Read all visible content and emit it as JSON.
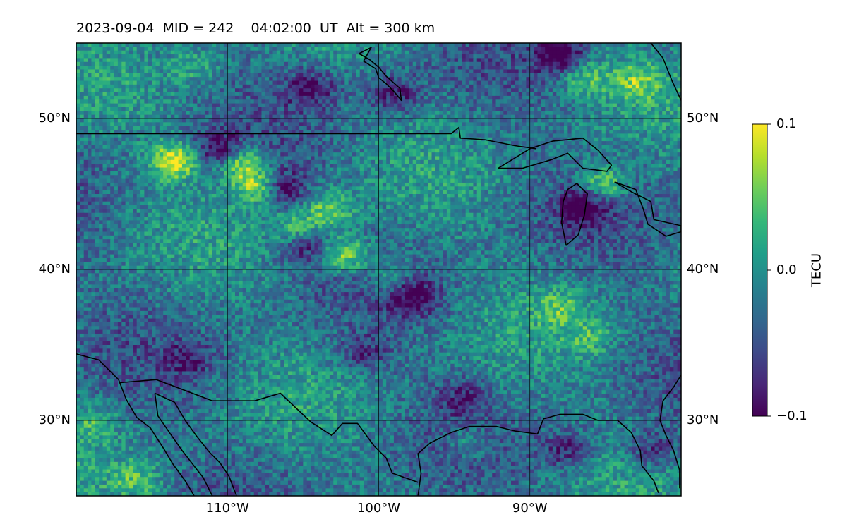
{
  "title": "2023-09-04  MID = 242    04:02:00  UT  Alt = 300 km",
  "map": {
    "lon_range": [
      -120,
      -80
    ],
    "lat_range": [
      25,
      55
    ],
    "grid": true,
    "lon_ticks": [
      {
        "value": -110,
        "label": "110°W"
      },
      {
        "value": -100,
        "label": "100°W"
      },
      {
        "value": -90,
        "label": "90°W"
      }
    ],
    "lat_ticks": [
      {
        "value": 50,
        "label": "50°N"
      },
      {
        "value": 40,
        "label": "40°N"
      },
      {
        "value": 30,
        "label": "30°N"
      }
    ]
  },
  "colorbar": {
    "label": "TECU",
    "colormap": "viridis",
    "vmin": -0.1,
    "vmax": 0.1,
    "ticks": [
      {
        "value": 0.1,
        "label": "0.1"
      },
      {
        "value": 0.0,
        "label": "0.0"
      },
      {
        "value": -0.1,
        "label": "−0.1"
      }
    ]
  },
  "field": {
    "grid_cols": 160,
    "grid_rows": 120,
    "background_value": -0.02,
    "anomalies": [
      {
        "lon": -113.5,
        "lat": 47.2,
        "value": 0.12
      },
      {
        "lon": -109.2,
        "lat": 47.1,
        "value": 0.11
      },
      {
        "lon": -107.8,
        "lat": 45.5,
        "value": 0.11
      },
      {
        "lon": -106.5,
        "lat": 45.4,
        "value": -0.1
      },
      {
        "lon": -110.5,
        "lat": 47.8,
        "value": -0.09
      },
      {
        "lon": -103.2,
        "lat": 44.0,
        "value": 0.07
      },
      {
        "lon": -105.2,
        "lat": 42.6,
        "value": 0.08
      },
      {
        "lon": -102.2,
        "lat": 41.0,
        "value": 0.1
      },
      {
        "lon": -104.8,
        "lat": 41.8,
        "value": -0.08
      },
      {
        "lon": -99.2,
        "lat": 39.5,
        "value": 0.05
      },
      {
        "lon": -97.6,
        "lat": 38.2,
        "value": -0.08
      },
      {
        "lon": -86.5,
        "lat": 44.2,
        "value": -0.09
      },
      {
        "lon": -85.2,
        "lat": 45.6,
        "value": 0.09
      },
      {
        "lon": -86.5,
        "lat": 52.8,
        "value": 0.06
      },
      {
        "lon": -83.0,
        "lat": 52.5,
        "value": 0.06
      },
      {
        "lon": -88.0,
        "lat": 54.2,
        "value": -0.1
      },
      {
        "lon": -99.0,
        "lat": 51.6,
        "value": -0.07
      },
      {
        "lon": -104.5,
        "lat": 52.0,
        "value": -0.07
      },
      {
        "lon": -112.0,
        "lat": 53.5,
        "value": 0.04
      },
      {
        "lon": -116.0,
        "lat": 26.0,
        "value": 0.05
      },
      {
        "lon": -119.0,
        "lat": 30.0,
        "value": 0.04
      },
      {
        "lon": -88.0,
        "lat": 37.5,
        "value": 0.05
      },
      {
        "lon": -86.0,
        "lat": 35.5,
        "value": 0.04
      },
      {
        "lon": -94.0,
        "lat": 28.5,
        "value": 0.04
      },
      {
        "lon": -82.0,
        "lat": 28.0,
        "value": -0.06
      },
      {
        "lon": -87.5,
        "lat": 28.0,
        "value": -0.06
      },
      {
        "lon": -112.5,
        "lat": 34.0,
        "value": -0.05
      },
      {
        "lon": -101.0,
        "lat": 34.5,
        "value": -0.05
      },
      {
        "lon": -94.5,
        "lat": 31.5,
        "value": -0.05
      }
    ]
  },
  "coastlines": [
    {
      "name": "canada-us-border",
      "points": [
        [
          -120,
          49
        ],
        [
          -95.2,
          49
        ],
        [
          -94.7,
          49.4
        ],
        [
          -94.6,
          48.7
        ],
        [
          -93,
          48.6
        ],
        [
          -91,
          48.2
        ],
        [
          -89.6,
          48
        ]
      ]
    },
    {
      "name": "hudson-bay-shore",
      "points": [
        [
          -101.3,
          54.3
        ],
        [
          -100.5,
          54.7
        ],
        [
          -101.0,
          53.8
        ],
        [
          -100.2,
          53.3
        ],
        [
          -100.0,
          52.7
        ],
        [
          -99.5,
          52.3
        ],
        [
          -99.0,
          51.8
        ],
        [
          -98.5,
          51.2
        ],
        [
          -98.6,
          52.0
        ],
        [
          -99.5,
          52.8
        ],
        [
          -100.0,
          53.4
        ],
        [
          -100.6,
          53.9
        ],
        [
          -101.3,
          54.3
        ]
      ]
    },
    {
      "name": "great-lakes-superior",
      "points": [
        [
          -92.1,
          46.7
        ],
        [
          -90.5,
          46.7
        ],
        [
          -88.5,
          47.3
        ],
        [
          -87.5,
          47.7
        ],
        [
          -86.5,
          46.7
        ],
        [
          -84.9,
          46.5
        ],
        [
          -84.6,
          46.9
        ],
        [
          -85.5,
          47.9
        ],
        [
          -86.5,
          48.7
        ],
        [
          -88.5,
          48.5
        ],
        [
          -90,
          48.0
        ],
        [
          -92.1,
          46.7
        ]
      ]
    },
    {
      "name": "great-lakes-michigan",
      "points": [
        [
          -87.9,
          43.1
        ],
        [
          -87.8,
          44.5
        ],
        [
          -87.5,
          45.3
        ],
        [
          -86.9,
          45.7
        ],
        [
          -86.2,
          45.0
        ],
        [
          -86.4,
          43.6
        ],
        [
          -86.8,
          42.3
        ],
        [
          -87.6,
          41.6
        ],
        [
          -87.9,
          43.1
        ]
      ]
    },
    {
      "name": "great-lakes-huron-erie",
      "points": [
        [
          -84.4,
          45.8
        ],
        [
          -83.0,
          45.3
        ],
        [
          -82.5,
          44.0
        ],
        [
          -82.2,
          43.0
        ],
        [
          -81.0,
          42.2
        ],
        [
          -80,
          42.5
        ],
        [
          -80,
          42.9
        ],
        [
          -81.8,
          43.3
        ],
        [
          -82.0,
          44.5
        ],
        [
          -83.2,
          45.1
        ],
        [
          -84.4,
          45.8
        ]
      ]
    },
    {
      "name": "mexico-us-border",
      "points": [
        [
          -117.1,
          32.5
        ],
        [
          -114.7,
          32.7
        ],
        [
          -111,
          31.3
        ],
        [
          -108.2,
          31.3
        ],
        [
          -106.5,
          31.8
        ],
        [
          -104.5,
          29.9
        ],
        [
          -103.1,
          29.0
        ],
        [
          -102.4,
          29.8
        ],
        [
          -101.4,
          29.8
        ],
        [
          -100.3,
          28.3
        ],
        [
          -99.5,
          27.5
        ],
        [
          -99.1,
          26.5
        ],
        [
          -97.4,
          25.9
        ]
      ]
    },
    {
      "name": "gulf-coast",
      "points": [
        [
          -97.4,
          25.0
        ],
        [
          -97.2,
          26.5
        ],
        [
          -97.4,
          27.8
        ],
        [
          -96.6,
          28.5
        ],
        [
          -95.2,
          29.2
        ],
        [
          -94.0,
          29.6
        ],
        [
          -92.2,
          29.6
        ],
        [
          -91.0,
          29.3
        ],
        [
          -89.5,
          29.1
        ],
        [
          -89.1,
          30.1
        ],
        [
          -88.0,
          30.4
        ],
        [
          -86.5,
          30.4
        ],
        [
          -85.5,
          30.0
        ],
        [
          -84.2,
          30.0
        ],
        [
          -83.3,
          29.2
        ],
        [
          -82.7,
          28.0
        ],
        [
          -82.6,
          27.0
        ],
        [
          -81.8,
          26.0
        ],
        [
          -81.5,
          25.2
        ]
      ]
    },
    {
      "name": "baja-california-west",
      "points": [
        [
          -120,
          34.4
        ],
        [
          -118.5,
          34.0
        ],
        [
          -117.2,
          32.7
        ],
        [
          -116.7,
          31.4
        ],
        [
          -116.0,
          30.2
        ],
        [
          -115.1,
          29.5
        ],
        [
          -114.2,
          28.1
        ],
        [
          -113.6,
          27.1
        ],
        [
          -112.8,
          26.0
        ],
        [
          -112.2,
          25.0
        ]
      ]
    },
    {
      "name": "gulf-of-california-east",
      "points": [
        [
          -114.8,
          31.8
        ],
        [
          -113.5,
          31.2
        ],
        [
          -112.8,
          30.0
        ],
        [
          -112.0,
          28.9
        ],
        [
          -111.2,
          27.9
        ],
        [
          -110.5,
          27.2
        ],
        [
          -109.9,
          26.3
        ],
        [
          -109.4,
          25.0
        ]
      ]
    },
    {
      "name": "gulf-of-california-west",
      "points": [
        [
          -114.8,
          31.8
        ],
        [
          -114.6,
          30.3
        ],
        [
          -113.7,
          29.0
        ],
        [
          -113.0,
          28.0
        ],
        [
          -112.3,
          27.1
        ],
        [
          -111.6,
          26.2
        ],
        [
          -111.0,
          25.0
        ]
      ]
    },
    {
      "name": "atlantic-coast",
      "points": [
        [
          -80,
          33.0
        ],
        [
          -80.5,
          32.2
        ],
        [
          -81.2,
          31.3
        ],
        [
          -81.4,
          30.0
        ],
        [
          -81.0,
          29.0
        ],
        [
          -80.5,
          28.0
        ],
        [
          -80.1,
          26.7
        ],
        [
          -80.1,
          25.5
        ]
      ]
    },
    {
      "name": "james-bay-shore",
      "points": [
        [
          -80.0,
          51.2
        ],
        [
          -80.6,
          52.5
        ],
        [
          -81.2,
          54.0
        ],
        [
          -82.0,
          55.0
        ]
      ]
    }
  ]
}
